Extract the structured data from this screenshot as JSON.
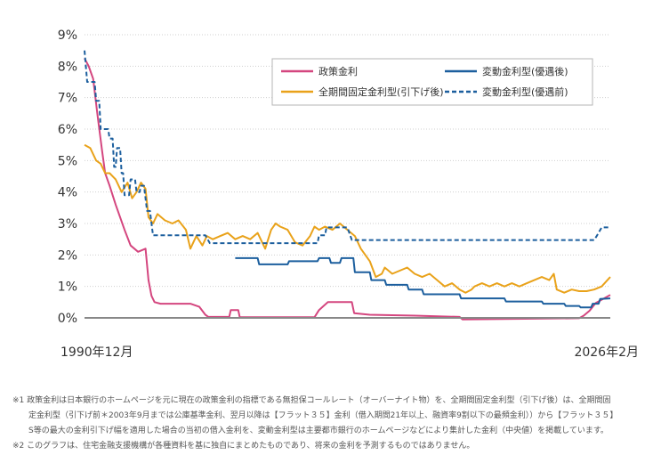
{
  "chart_data": {
    "type": "line",
    "x_start_label": "1990年12月",
    "x_end_label": "2026年2月",
    "x_range": [
      1990.92,
      2026.08
    ],
    "ylim": [
      0,
      9
    ],
    "yticks": [
      "0%",
      "1%",
      "2%",
      "3%",
      "4%",
      "5%",
      "6%",
      "7%",
      "8%",
      "9%"
    ],
    "grid": "y-only",
    "legend_position": "top-right",
    "series": [
      {
        "name": "政策金利",
        "color": "#d4467f",
        "style": "solid",
        "points": [
          [
            1990.92,
            8.25
          ],
          [
            1991.2,
            8.0
          ],
          [
            1991.5,
            7.6
          ],
          [
            1991.8,
            6.4
          ],
          [
            1992.1,
            5.3
          ],
          [
            1992.3,
            4.6
          ],
          [
            1992.6,
            4.2
          ],
          [
            1993.0,
            3.6
          ],
          [
            1993.3,
            3.2
          ],
          [
            1993.6,
            2.8
          ],
          [
            1994.0,
            2.3
          ],
          [
            1994.5,
            2.1
          ],
          [
            1995.0,
            2.2
          ],
          [
            1995.2,
            1.2
          ],
          [
            1995.4,
            0.7
          ],
          [
            1995.6,
            0.5
          ],
          [
            1996.0,
            0.45
          ],
          [
            1997.0,
            0.45
          ],
          [
            1998.0,
            0.45
          ],
          [
            1998.6,
            0.35
          ],
          [
            1999.0,
            0.1
          ],
          [
            1999.2,
            0.03
          ],
          [
            2000.6,
            0.03
          ],
          [
            2000.7,
            0.25
          ],
          [
            2001.2,
            0.25
          ],
          [
            2001.3,
            0.02
          ],
          [
            2006.3,
            0.02
          ],
          [
            2006.6,
            0.25
          ],
          [
            2007.2,
            0.5
          ],
          [
            2008.0,
            0.5
          ],
          [
            2008.8,
            0.5
          ],
          [
            2008.95,
            0.15
          ],
          [
            2010.0,
            0.1
          ],
          [
            2013.0,
            0.07
          ],
          [
            2016.0,
            0.03
          ],
          [
            2016.2,
            -0.05
          ],
          [
            2024.0,
            -0.01
          ],
          [
            2024.3,
            0.07
          ],
          [
            2024.7,
            0.23
          ],
          [
            2025.1,
            0.47
          ],
          [
            2026.08,
            0.73
          ]
        ]
      },
      {
        "name": "全期間固定金利型(引下げ後)",
        "color": "#e9a21a",
        "style": "solid",
        "points": [
          [
            1990.92,
            5.5
          ],
          [
            1991.3,
            5.4
          ],
          [
            1991.7,
            5.0
          ],
          [
            1992.0,
            4.9
          ],
          [
            1992.3,
            4.6
          ],
          [
            1992.6,
            4.6
          ],
          [
            1993.0,
            4.4
          ],
          [
            1993.4,
            4.0
          ],
          [
            1993.8,
            4.3
          ],
          [
            1994.1,
            3.8
          ],
          [
            1994.4,
            4.0
          ],
          [
            1994.7,
            4.3
          ],
          [
            1995.0,
            4.1
          ],
          [
            1995.2,
            3.2
          ],
          [
            1995.5,
            3.0
          ],
          [
            1995.8,
            3.3
          ],
          [
            1996.3,
            3.1
          ],
          [
            1996.8,
            3.0
          ],
          [
            1997.2,
            3.1
          ],
          [
            1997.7,
            2.8
          ],
          [
            1998.0,
            2.2
          ],
          [
            1998.4,
            2.6
          ],
          [
            1998.8,
            2.3
          ],
          [
            1999.1,
            2.6
          ],
          [
            1999.5,
            2.5
          ],
          [
            2000.0,
            2.6
          ],
          [
            2000.5,
            2.7
          ],
          [
            2001.0,
            2.5
          ],
          [
            2001.5,
            2.6
          ],
          [
            2002.0,
            2.5
          ],
          [
            2002.5,
            2.7
          ],
          [
            2003.0,
            2.2
          ],
          [
            2003.4,
            2.8
          ],
          [
            2003.7,
            3.0
          ],
          [
            2004.0,
            2.9
          ],
          [
            2004.5,
            2.8
          ],
          [
            2005.0,
            2.4
          ],
          [
            2005.5,
            2.3
          ],
          [
            2006.0,
            2.6
          ],
          [
            2006.3,
            2.9
          ],
          [
            2006.6,
            2.8
          ],
          [
            2007.0,
            2.9
          ],
          [
            2007.5,
            2.8
          ],
          [
            2008.0,
            3.0
          ],
          [
            2008.5,
            2.8
          ],
          [
            2009.0,
            2.6
          ],
          [
            2009.4,
            2.2
          ],
          [
            2010.0,
            1.8
          ],
          [
            2010.4,
            1.3
          ],
          [
            2010.8,
            1.4
          ],
          [
            2011.0,
            1.6
          ],
          [
            2011.5,
            1.4
          ],
          [
            2012.0,
            1.5
          ],
          [
            2012.5,
            1.6
          ],
          [
            2013.0,
            1.4
          ],
          [
            2013.5,
            1.3
          ],
          [
            2014.0,
            1.4
          ],
          [
            2014.5,
            1.2
          ],
          [
            2015.0,
            1.0
          ],
          [
            2015.5,
            1.1
          ],
          [
            2016.0,
            0.9
          ],
          [
            2016.4,
            0.8
          ],
          [
            2016.8,
            0.9
          ],
          [
            2017.0,
            1.0
          ],
          [
            2017.5,
            1.1
          ],
          [
            2018.0,
            1.0
          ],
          [
            2018.5,
            1.1
          ],
          [
            2019.0,
            1.0
          ],
          [
            2019.5,
            1.1
          ],
          [
            2020.0,
            1.0
          ],
          [
            2020.5,
            1.1
          ],
          [
            2021.0,
            1.2
          ],
          [
            2021.5,
            1.3
          ],
          [
            2022.0,
            1.2
          ],
          [
            2022.3,
            1.4
          ],
          [
            2022.5,
            0.9
          ],
          [
            2023.0,
            0.8
          ],
          [
            2023.5,
            0.9
          ],
          [
            2024.0,
            0.85
          ],
          [
            2024.5,
            0.85
          ],
          [
            2025.0,
            0.9
          ],
          [
            2025.5,
            1.0
          ],
          [
            2026.08,
            1.3
          ]
        ]
      },
      {
        "name": "変動金利型(優遇後)",
        "color": "#1c5f9e",
        "style": "solid",
        "points": [
          [
            2001.0,
            1.9
          ],
          [
            2002.5,
            1.9
          ],
          [
            2002.6,
            1.7
          ],
          [
            2004.5,
            1.7
          ],
          [
            2004.6,
            1.8
          ],
          [
            2006.5,
            1.8
          ],
          [
            2006.6,
            1.9
          ],
          [
            2007.3,
            1.9
          ],
          [
            2007.4,
            1.75
          ],
          [
            2008.0,
            1.75
          ],
          [
            2008.1,
            1.9
          ],
          [
            2008.9,
            1.9
          ],
          [
            2009.0,
            1.45
          ],
          [
            2010.0,
            1.45
          ],
          [
            2010.1,
            1.2
          ],
          [
            2011.0,
            1.2
          ],
          [
            2011.1,
            1.05
          ],
          [
            2012.5,
            1.05
          ],
          [
            2012.6,
            0.9
          ],
          [
            2013.5,
            0.9
          ],
          [
            2013.6,
            0.75
          ],
          [
            2016.0,
            0.75
          ],
          [
            2016.1,
            0.62
          ],
          [
            2019.0,
            0.62
          ],
          [
            2019.1,
            0.52
          ],
          [
            2021.5,
            0.52
          ],
          [
            2021.6,
            0.45
          ],
          [
            2023.0,
            0.45
          ],
          [
            2023.1,
            0.38
          ],
          [
            2024.0,
            0.38
          ],
          [
            2024.1,
            0.33
          ],
          [
            2024.8,
            0.33
          ],
          [
            2024.9,
            0.45
          ],
          [
            2025.3,
            0.45
          ],
          [
            2025.4,
            0.6
          ],
          [
            2026.08,
            0.62
          ]
        ]
      },
      {
        "name": "変動金利型(優遇前)",
        "color": "#1c5f9e",
        "style": "dashed",
        "points": [
          [
            1990.92,
            8.5
          ],
          [
            1991.1,
            7.5
          ],
          [
            1991.6,
            7.5
          ],
          [
            1991.7,
            6.9
          ],
          [
            1991.9,
            6.9
          ],
          [
            1992.0,
            6.0
          ],
          [
            1992.5,
            6.0
          ],
          [
            1992.6,
            5.7
          ],
          [
            1992.8,
            5.7
          ],
          [
            1992.9,
            4.8
          ],
          [
            1993.0,
            4.8
          ],
          [
            1993.1,
            5.4
          ],
          [
            1993.3,
            5.4
          ],
          [
            1993.4,
            4.6
          ],
          [
            1993.5,
            4.6
          ],
          [
            1993.6,
            3.9
          ],
          [
            1993.9,
            3.9
          ],
          [
            1994.0,
            4.4
          ],
          [
            1994.3,
            4.4
          ],
          [
            1994.4,
            4.0
          ],
          [
            1994.6,
            4.0
          ],
          [
            1994.7,
            4.2
          ],
          [
            1994.9,
            4.2
          ],
          [
            1995.1,
            3.4
          ],
          [
            1995.3,
            3.4
          ],
          [
            1995.4,
            3.0
          ],
          [
            1995.5,
            2.625
          ],
          [
            1999.0,
            2.625
          ],
          [
            1999.3,
            2.375
          ],
          [
            2006.5,
            2.375
          ],
          [
            2006.6,
            2.625
          ],
          [
            2007.0,
            2.625
          ],
          [
            2007.1,
            2.875
          ],
          [
            2008.5,
            2.875
          ],
          [
            2008.8,
            2.475
          ],
          [
            2025.0,
            2.475
          ],
          [
            2025.2,
            2.625
          ],
          [
            2025.5,
            2.875
          ],
          [
            2026.08,
            2.875
          ]
        ]
      }
    ]
  },
  "notes": [
    {
      "text": "※1 政策金利は日本銀行のホームページを元に現在の政策金利の指標である無担保コールレート（オーバーナイト物）を、全期間固定金利型（引下げ後）は、全期間固",
      "cont": false
    },
    {
      "text": "定金利型（引下げ前＊2003年9月までは公庫基準金利、翌月以降は【フラット３５】金利（借入期間21年以上、融資率9割以下の最頻金利））から【フラット３５】",
      "cont": true
    },
    {
      "text": "S等の最大の金利引下げ幅を適用した場合の当初の借入金利を、変動金利型は主要都市銀行のホームページなどにより集計した金利（中央値）を掲載しています。",
      "cont": true
    },
    {
      "text": "※2 このグラフは、住宅金融支援機構が各種資料を基に独自にまとめたものであり、将来の金利を予測するものではありません。",
      "cont": false
    }
  ]
}
